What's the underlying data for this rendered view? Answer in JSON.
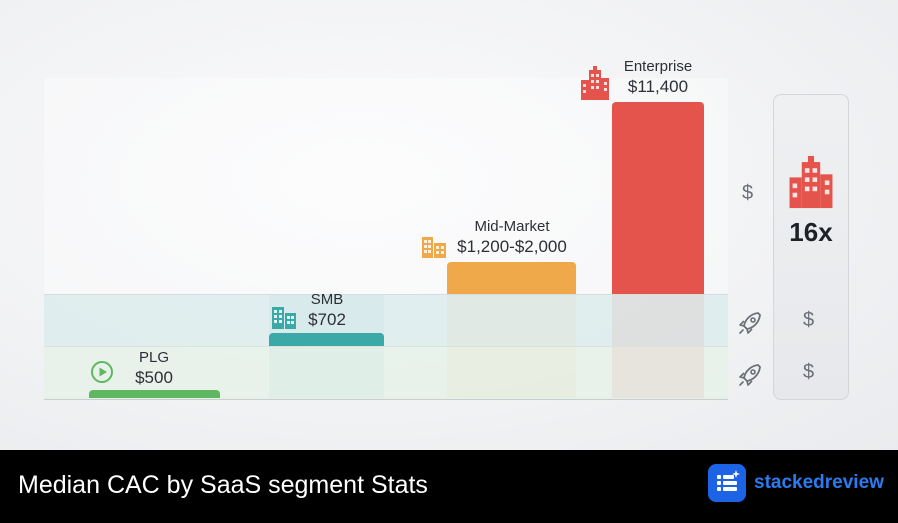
{
  "chart_data": {
    "type": "bar",
    "categories": [
      "PLG",
      "SMB",
      "Mid-Market",
      "Enterprise"
    ],
    "values": [
      500,
      702,
      1600,
      11400
    ],
    "value_labels": [
      "$500",
      "$702",
      "$1,200-$2,000",
      "$11,400"
    ],
    "range": {
      "Mid-Market": [
        1200,
        2000
      ]
    },
    "scale": "broken",
    "grid": false,
    "legend": "none"
  },
  "colors": {
    "PLG": "#5fb860",
    "SMB": "#3aa9a8",
    "Mid-Market": "#f0a94a",
    "Enterprise": "#e5544c"
  },
  "icons": {
    "PLG": "play-circle-icon",
    "SMB": "office-building-icon",
    "Mid-Market": "office-buildings-icon",
    "Enterprise": "skyscraper-icon",
    "side": [
      "dollar-icon",
      "rocket-icon",
      "dollar-icon",
      "rocket-icon",
      "dollar-icon"
    ]
  },
  "side": {
    "dollar_symbol": "$",
    "multiplier": "16x"
  },
  "footer": {
    "title": "Median CAC by SaaS segment Stats",
    "brand": "stackedreview"
  }
}
